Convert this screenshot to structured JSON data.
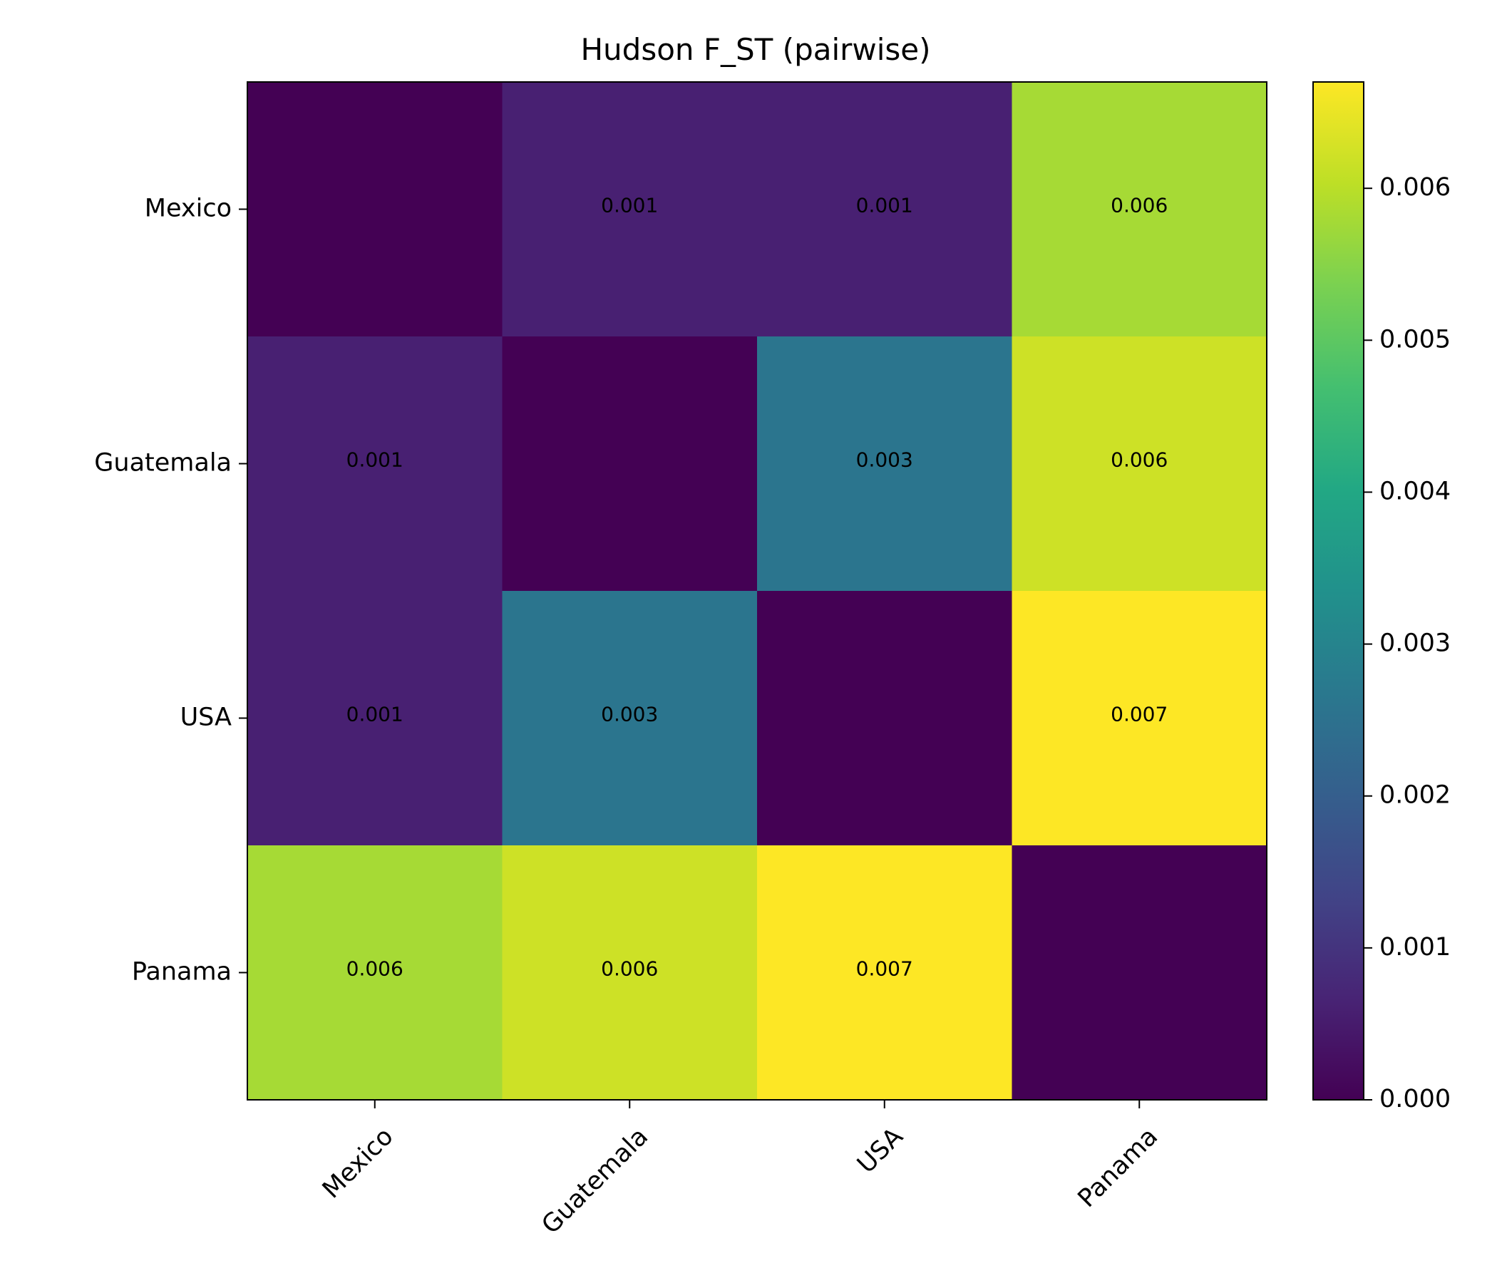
{
  "chart_data": {
    "type": "heatmap",
    "title": "Hudson F_ST (pairwise)",
    "rows": [
      "Mexico",
      "Guatemala",
      "USA",
      "Panama"
    ],
    "columns": [
      "Mexico",
      "Guatemala",
      "USA",
      "Panama"
    ],
    "values": [
      [
        0.0,
        0.0006,
        0.0006,
        0.0058
      ],
      [
        0.0006,
        0.0,
        0.0026,
        0.0062
      ],
      [
        0.0006,
        0.0026,
        0.0,
        0.0067
      ],
      [
        0.0058,
        0.0062,
        0.0067,
        0.0
      ]
    ],
    "cell_labels": [
      [
        "",
        "0.001",
        "0.001",
        "0.006"
      ],
      [
        "0.001",
        "",
        "0.003",
        "0.006"
      ],
      [
        "0.001",
        "0.003",
        "",
        "0.007"
      ],
      [
        "0.006",
        "0.006",
        "0.007",
        ""
      ]
    ],
    "colormap": "viridis",
    "colorbar": {
      "range": [
        0.0,
        0.0067
      ],
      "ticks": [
        0.0,
        0.001,
        0.002,
        0.003,
        0.004,
        0.005,
        0.006
      ],
      "tick_labels": [
        "0.000",
        "0.001",
        "0.002",
        "0.003",
        "0.004",
        "0.005",
        "0.006"
      ]
    }
  }
}
